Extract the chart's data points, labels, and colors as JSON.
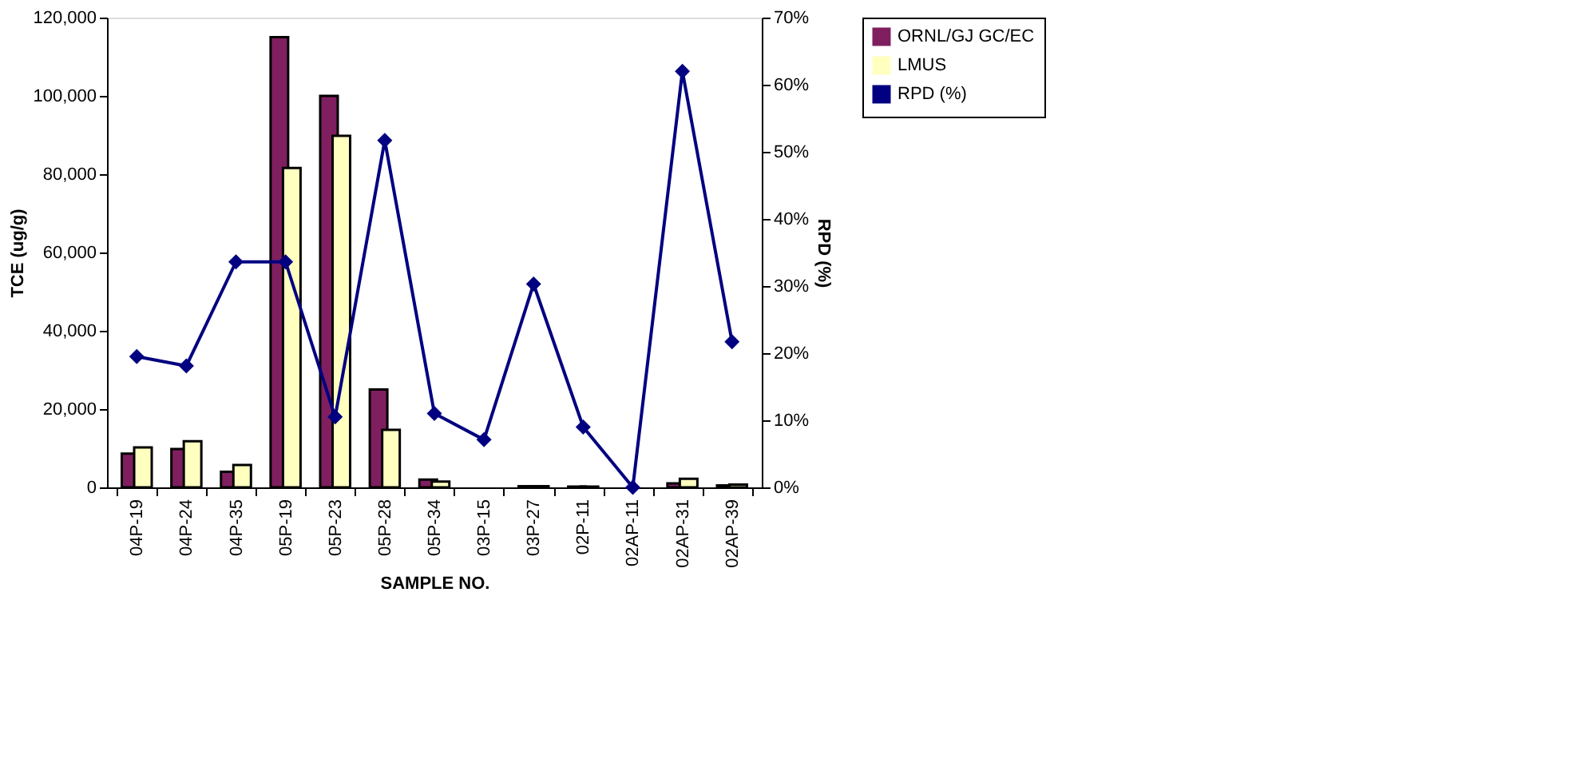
{
  "chart_data": {
    "type": "bar",
    "categories": [
      "04P-19",
      "04P-24",
      "04P-35",
      "05P-19",
      "05P-23",
      "05P-28",
      "05P-34",
      "03P-15",
      "03P-27",
      "02P-11",
      "02AP-11",
      "02AP-31",
      "02AP-39"
    ],
    "series": [
      {
        "name": "ORNL/GJ GC/EC",
        "color": "#7f1f5f",
        "values": [
          8600,
          9800,
          4000,
          115000,
          100000,
          25000,
          2000,
          0,
          300,
          200,
          0,
          1000,
          500
        ]
      },
      {
        "name": "LMUS",
        "color": "#ffffc0",
        "values": [
          10200,
          11800,
          5700,
          81600,
          89800,
          14700,
          1500,
          0,
          300,
          200,
          0,
          2200,
          700
        ]
      },
      {
        "name": "RPD (%)",
        "color": "#000080",
        "type": "line",
        "axis": "y2",
        "marker": "diamond",
        "values": [
          19.5,
          18.1,
          33.6,
          33.6,
          10.5,
          51.7,
          11,
          7.1,
          30.3,
          9,
          0,
          62,
          21.7
        ]
      }
    ],
    "xlabel": "SAMPLE NO.",
    "ylabel": "TCE (ug/g)",
    "y2label": "RPD (%)",
    "ylim": [
      0,
      120000
    ],
    "yticks": [
      {
        "value": 0,
        "label": "0"
      },
      {
        "value": 20000,
        "label": "20,000"
      },
      {
        "value": 40000,
        "label": "40,000"
      },
      {
        "value": 60000,
        "label": "60,000"
      },
      {
        "value": 80000,
        "label": "80,000"
      },
      {
        "value": 100000,
        "label": "100,000"
      },
      {
        "value": 120000,
        "label": "120,000"
      }
    ],
    "y2lim": [
      0,
      70
    ],
    "y2ticks": [
      {
        "value": 0,
        "label": "0%"
      },
      {
        "value": 10,
        "label": "10%"
      },
      {
        "value": 20,
        "label": "20%"
      },
      {
        "value": 30,
        "label": "30%"
      },
      {
        "value": 40,
        "label": "40%"
      },
      {
        "value": 50,
        "label": "50%"
      },
      {
        "value": 60,
        "label": "60%"
      },
      {
        "value": 70,
        "label": "70%"
      }
    ],
    "grid": false,
    "legend": "right"
  }
}
